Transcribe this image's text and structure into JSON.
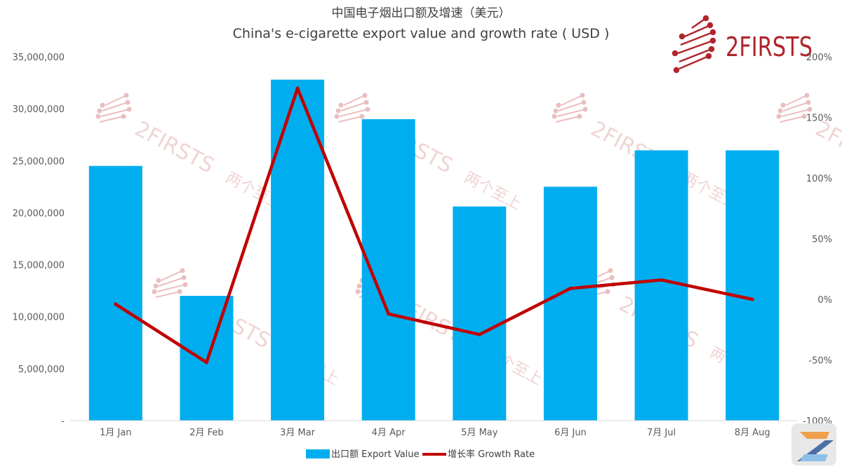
{
  "chart_data": {
    "type": "bar",
    "title": "中国电子烟出口额及增速（美元）",
    "subtitle": "China's e-cigarette export value and growth rate ( USD )",
    "categories": [
      "1月 Jan",
      "2月 Feb",
      "3月 Mar",
      "4月 Apr",
      "5月 May",
      "6月 Jun",
      "7月 Jul",
      "8月 Aug"
    ],
    "series": [
      {
        "name": "出口额 Export Value",
        "type": "bar",
        "axis": "left",
        "color": "#00aeef",
        "values": [
          24500000,
          12000000,
          32800000,
          29000000,
          20600000,
          22500000,
          26000000,
          26000000
        ]
      },
      {
        "name": "增长率 Growth Rate",
        "type": "line",
        "axis": "right",
        "color": "#c00000",
        "values": [
          -4,
          -52,
          174,
          -12,
          -29,
          9,
          16,
          0
        ]
      }
    ],
    "y_left": {
      "min": 0,
      "max": 35000000,
      "tick_labels": [
        "-",
        "5,000,000",
        "10,000,000",
        "15,000,000",
        "20,000,000",
        "25,000,000",
        "30,000,000",
        "35,000,000"
      ]
    },
    "y_right": {
      "min": -100,
      "max": 200,
      "tick_labels": [
        "-100%",
        "-50%",
        "0%",
        "50%",
        "100%",
        "150%",
        "200%"
      ]
    },
    "grid": false,
    "legend_position": "bottom"
  },
  "logo": {
    "text": "2FIRSTS",
    "color": "#b0252c"
  },
  "watermark": {
    "text": "2FIRSTS",
    "cn": "两个至上"
  }
}
